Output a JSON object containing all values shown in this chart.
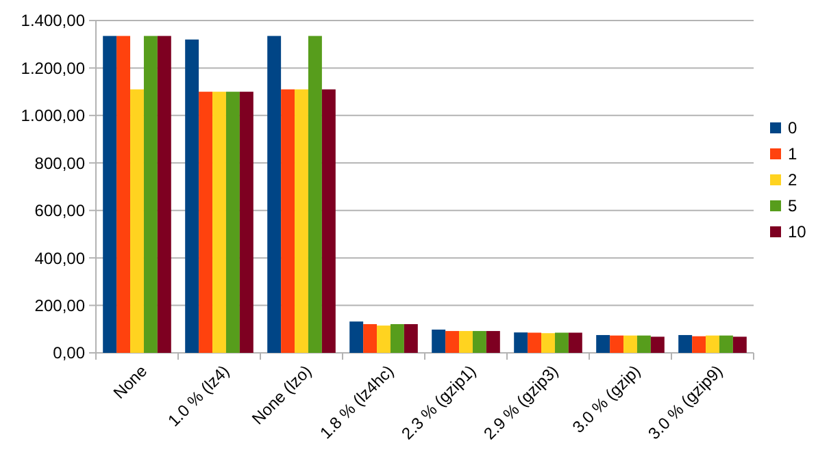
{
  "chart_data": {
    "type": "bar",
    "categories": [
      "None",
      "1.0 % (lz4)",
      "None (lzo)",
      "1.8 % (lz4hc)",
      "2.3 % (gzip1)",
      "2.9 % (gzip3)",
      "3.0 % (gzip)",
      "3.0 % (gzip9)"
    ],
    "series": [
      {
        "name": "0",
        "color": "#004586",
        "values": [
          1335,
          1320,
          1335,
          132,
          98,
          86,
          75,
          75
        ]
      },
      {
        "name": "1",
        "color": "#ff420e",
        "values": [
          1335,
          1100,
          1110,
          121,
          92,
          85,
          73,
          70
        ]
      },
      {
        "name": "2",
        "color": "#ffd320",
        "values": [
          1110,
          1100,
          1110,
          115,
          92,
          83,
          73,
          73
        ]
      },
      {
        "name": "5",
        "color": "#579d1c",
        "values": [
          1335,
          1100,
          1335,
          121,
          92,
          85,
          73,
          73
        ]
      },
      {
        "name": "10",
        "color": "#7e0021",
        "values": [
          1335,
          1100,
          1110,
          121,
          92,
          85,
          68,
          68
        ]
      }
    ],
    "ylim": [
      0,
      1400
    ],
    "yticks": [
      {
        "value": 0,
        "label": "0,00"
      },
      {
        "value": 200,
        "label": "200,00"
      },
      {
        "value": 400,
        "label": "400,00"
      },
      {
        "value": 600,
        "label": "600,00"
      },
      {
        "value": 800,
        "label": "800,00"
      },
      {
        "value": 1000,
        "label": "1.000,00"
      },
      {
        "value": 1200,
        "label": "1.200,00"
      },
      {
        "value": 1400,
        "label": "1.400,00"
      }
    ],
    "grid": "y",
    "legend": "right"
  }
}
